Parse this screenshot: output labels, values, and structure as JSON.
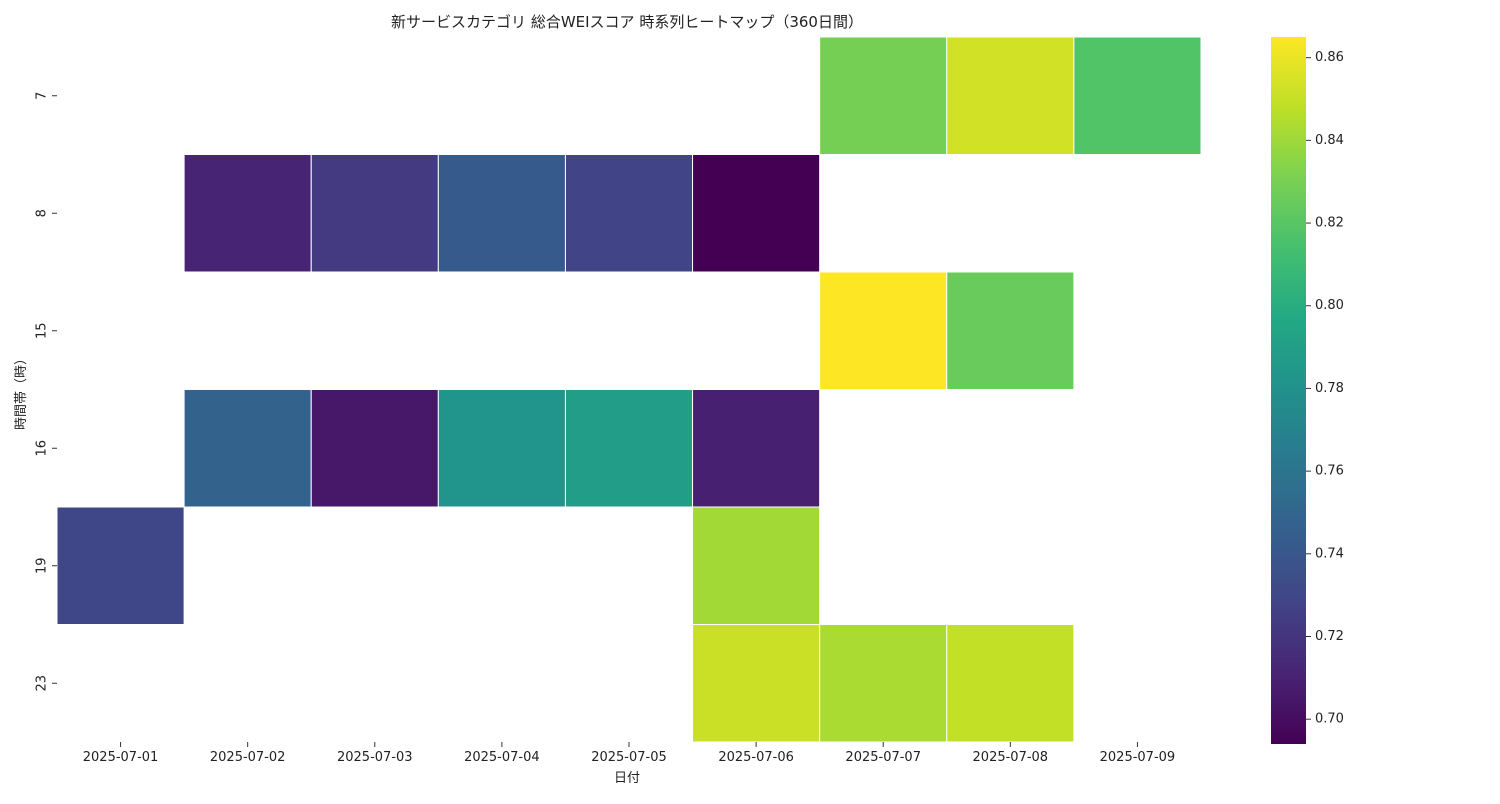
{
  "chart_data": {
    "type": "heatmap",
    "title": "新サービスカテゴリ 総合WEIスコア 時系列ヒートマップ（360日間）",
    "xlabel": "日付",
    "ylabel": "時間帯（時）",
    "x": [
      "2025-07-01",
      "2025-07-02",
      "2025-07-03",
      "2025-07-04",
      "2025-07-05",
      "2025-07-06",
      "2025-07-07",
      "2025-07-08",
      "2025-07-09"
    ],
    "y": [
      "7",
      "8",
      "15",
      "16",
      "19",
      "23"
    ],
    "values": [
      [
        null,
        null,
        null,
        null,
        null,
        null,
        0.829,
        0.853,
        0.818
      ],
      [
        null,
        0.711,
        0.723,
        0.742,
        0.728,
        0.694,
        null,
        null,
        null
      ],
      [
        null,
        null,
        null,
        null,
        null,
        null,
        0.865,
        0.825,
        null
      ],
      [
        null,
        0.748,
        0.705,
        0.782,
        0.789,
        0.709,
        null,
        null,
        null
      ],
      [
        0.73,
        null,
        null,
        null,
        null,
        0.841,
        null,
        null,
        null
      ],
      [
        null,
        null,
        null,
        null,
        null,
        0.851,
        0.843,
        0.849,
        null
      ]
    ],
    "colormap": "viridis",
    "colorbar": {
      "min": 0.694,
      "max": 0.865,
      "ticks": [
        "0.70",
        "0.72",
        "0.74",
        "0.76",
        "0.78",
        "0.80",
        "0.82",
        "0.84",
        "0.86"
      ]
    },
    "grid": false,
    "legend": "colorbar-right"
  }
}
